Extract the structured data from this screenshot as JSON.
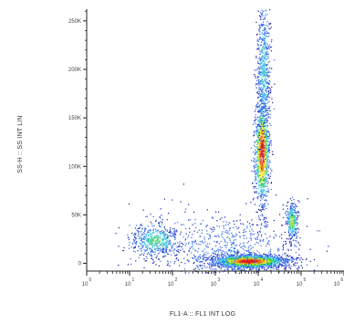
{
  "chart_data": {
    "type": "scatter",
    "title": "",
    "xlabel": "FL1-A :: FL1 INT LOG",
    "ylabel": "SS-H :: SS INT LIN",
    "x_scale": "log",
    "xlim": [
      1,
      1000000
    ],
    "x_ticks": [
      {
        "value": 1,
        "base": "10",
        "exp": "0"
      },
      {
        "value": 10,
        "base": "10",
        "exp": "1"
      },
      {
        "value": 100,
        "base": "10",
        "exp": "2"
      },
      {
        "value": 1000,
        "base": "10",
        "exp": "3"
      },
      {
        "value": 10000,
        "base": "10",
        "exp": "4"
      },
      {
        "value": 100000,
        "base": "10",
        "exp": "5"
      },
      {
        "value": 1000000,
        "base": "10",
        "exp": "6"
      }
    ],
    "ylim": [
      -8000,
      262144
    ],
    "y_ticks": [
      {
        "value": 0,
        "label": "0"
      },
      {
        "value": 50000,
        "label": "50K"
      },
      {
        "value": 100000,
        "label": "100K"
      },
      {
        "value": 150000,
        "label": "150K"
      },
      {
        "value": 200000,
        "label": "200K"
      },
      {
        "value": 250000,
        "label": "250K"
      }
    ],
    "colormap": [
      "#1a1aa8",
      "#2f64e8",
      "#3ec6e0",
      "#39d64a",
      "#f2e21c",
      "#f08a14",
      "#e01e10"
    ],
    "populations": [
      {
        "x_center": 40,
        "y_center": 24000,
        "log_spread": 0.3,
        "y_spread": 9000,
        "count": 520,
        "peak_density": 0.4
      },
      {
        "x_center": 12000,
        "y_center": 115000,
        "log_spread": 0.09,
        "y_spread": 28000,
        "count": 1100,
        "peak_density": 1.0
      },
      {
        "x_center": 13000,
        "y_center": 200000,
        "log_spread": 0.08,
        "y_spread": 40000,
        "count": 650,
        "peak_density": 0.3
      },
      {
        "x_center": 60000,
        "y_center": 44000,
        "log_spread": 0.07,
        "y_spread": 10000,
        "count": 300,
        "peak_density": 0.55
      },
      {
        "x_center": 6000,
        "y_center": 2500,
        "log_spread": 0.45,
        "y_spread": 3500,
        "count": 1900,
        "peak_density": 1.0
      },
      {
        "x_center": 2000,
        "y_center": 15000,
        "log_spread": 0.9,
        "y_spread": 20000,
        "count": 800,
        "peak_density": 0.15
      }
    ]
  }
}
